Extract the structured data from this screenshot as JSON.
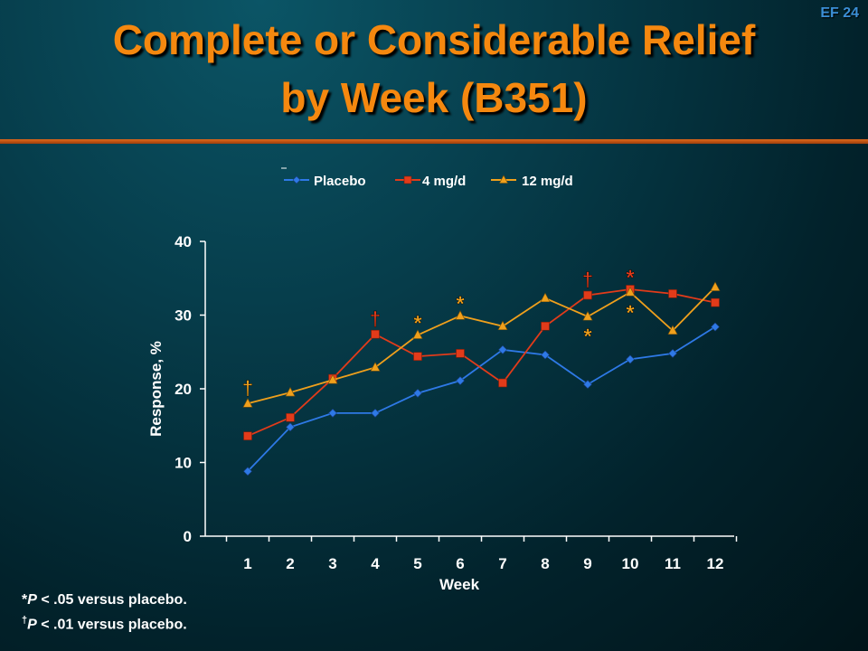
{
  "slide_id": "EF 24",
  "title_line1": "Complete or Considerable Relief",
  "title_line2": "by Week (B351)",
  "footnotes": {
    "note1_mark": "*",
    "note1_p": "P",
    "note1_text": " < .05 versus placebo.",
    "note2_mark": "†",
    "note2_p": "P",
    "note2_text": " < .01 versus placebo."
  },
  "chart_data": {
    "type": "line",
    "xlabel": "Week",
    "ylabel": "Response, %",
    "ylim": [
      0,
      40
    ],
    "yticks": [
      0,
      10,
      20,
      30,
      40
    ],
    "categories": [
      "1",
      "2",
      "3",
      "4",
      "5",
      "6",
      "7",
      "8",
      "9",
      "10",
      "11",
      "12"
    ],
    "legend_position": "top-center",
    "grid": false,
    "series": [
      {
        "name": "Placebo",
        "color": "#2e79e6",
        "marker": "diamond",
        "values": [
          8.8,
          14.8,
          16.7,
          16.7,
          19.4,
          21.1,
          25.3,
          24.6,
          20.6,
          24.0,
          24.8,
          28.4
        ]
      },
      {
        "name": "4 mg/d",
        "color": "#e23b1a",
        "marker": "square",
        "values": [
          13.6,
          16.1,
          21.4,
          27.4,
          24.4,
          24.8,
          20.8,
          28.5,
          32.7,
          33.5,
          32.9,
          31.7
        ]
      },
      {
        "name": "12 mg/d",
        "color": "#f0a01c",
        "marker": "triangle",
        "values": [
          18.0,
          19.5,
          21.2,
          22.9,
          27.3,
          29.9,
          28.5,
          32.3,
          29.8,
          33.1,
          27.9,
          33.8
        ]
      }
    ],
    "annotations": [
      {
        "text": "†",
        "week": 1,
        "y": 20.2,
        "color": "#f0a01c"
      },
      {
        "text": "†",
        "week": 4,
        "y": 29.6,
        "color": "#e23b1a"
      },
      {
        "text": "*",
        "week": 5,
        "y": 29.4,
        "color": "#f0a01c"
      },
      {
        "text": "*",
        "week": 6,
        "y": 32.0,
        "color": "#f0a01c"
      },
      {
        "text": "†",
        "week": 9,
        "y": 34.9,
        "color": "#e23b1a"
      },
      {
        "text": "*",
        "week": 9,
        "y": 27.6,
        "color": "#f0a01c"
      },
      {
        "text": "*",
        "week": 10,
        "y": 35.6,
        "color": "#e23b1a"
      },
      {
        "text": "*",
        "week": 10,
        "y": 30.8,
        "color": "#f0a01c"
      }
    ]
  }
}
